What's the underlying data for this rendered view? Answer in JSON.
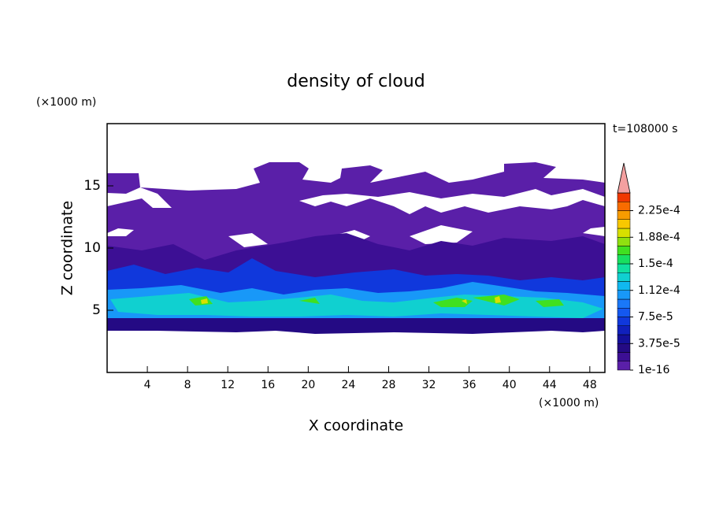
{
  "chart_data": {
    "type": "contour",
    "title": "density of cloud",
    "subtitle": "t=108000 s",
    "xlabel": "X coordinate",
    "ylabel": "Z coordinate",
    "x_unit": "(×1000 m)",
    "y_unit": "(×1000 m)",
    "xlim": [
      0,
      49.5
    ],
    "ylim": [
      0,
      20
    ],
    "xticks": [
      4,
      8,
      12,
      16,
      20,
      24,
      28,
      32,
      36,
      40,
      44,
      48
    ],
    "yticks": [
      5,
      10,
      15
    ],
    "levels": [
      1e-16,
      1.25e-05,
      2.5e-05,
      3.75e-05,
      5e-05,
      6.25e-05,
      7.5e-05,
      8.75e-05,
      0.0001,
      0.0001125,
      0.000125,
      0.0001375,
      0.00015,
      0.0001625,
      0.000175,
      0.0001875,
      0.0002,
      0.0002125,
      0.000225,
      0.0002375,
      0.00025
    ],
    "level_colors": [
      "#5a1fa8",
      "#3c0f94",
      "#240a84",
      "#14109a",
      "#1020bc",
      "#1038dc",
      "#1458f0",
      "#1a78f8",
      "#1898f8",
      "#10b8f0",
      "#10d0d0",
      "#10e0a0",
      "#18e060",
      "#40e020",
      "#90e010",
      "#d8e000",
      "#f8c800",
      "#f89c00",
      "#f86c00",
      "#f03800"
    ],
    "extend": "max",
    "extend_color": "#f4a0a0",
    "colorbar_ticks": [
      1e-16,
      {
        "value": 3.75e-05,
        "label": "3.75e-5"
      },
      {
        "value": 7.5e-05,
        "label": "7.5e-5"
      },
      {
        "value": 0.0001125,
        "label": "1.12e-4"
      },
      {
        "value": 0.00015,
        "label": "1.5e-4"
      },
      {
        "value": 0.0001875,
        "label": "1.88e-4"
      },
      {
        "value": 0.000225,
        "label": "2.25e-4"
      }
    ]
  }
}
